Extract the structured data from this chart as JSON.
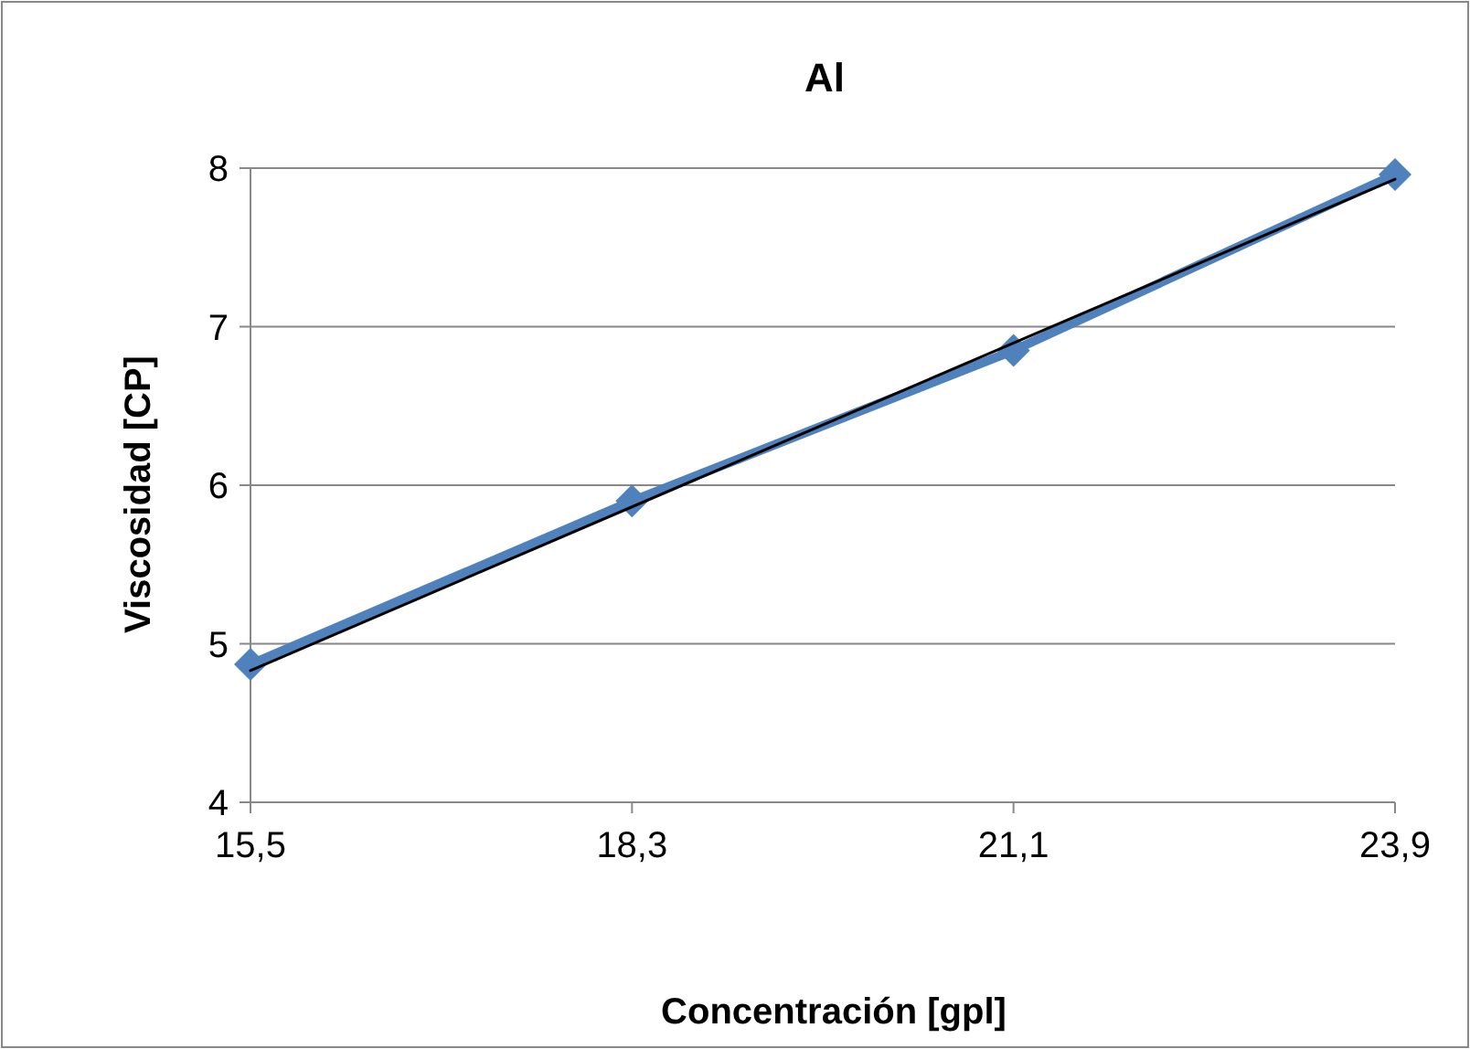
{
  "chart_data": {
    "type": "line",
    "title": "Al",
    "xlabel": "Concentración [gpl]",
    "ylabel": "Viscosidad [CP]",
    "x": [
      15.5,
      18.3,
      21.1,
      23.9
    ],
    "series": [
      {
        "color": "#4f81bd",
        "values": [
          4.87,
          5.9,
          6.85,
          7.96
        ],
        "marker": "diamond"
      },
      {
        "type": "line",
        "color": "#000000",
        "x": [
          15.5,
          23.9
        ],
        "values": [
          4.83,
          7.93
        ],
        "marker": "none"
      }
    ],
    "xlim": [
      15.5,
      23.9
    ],
    "xticks": [
      {
        "value": 15.5,
        "label": "15,5"
      },
      {
        "value": 18.3,
        "label": "18,3"
      },
      {
        "value": 21.1,
        "label": "21,1"
      },
      {
        "value": 23.9,
        "label": "23,9"
      }
    ],
    "ylim": [
      4,
      8
    ],
    "yticks": [
      4,
      5,
      6,
      7,
      8
    ],
    "grid": "y"
  }
}
